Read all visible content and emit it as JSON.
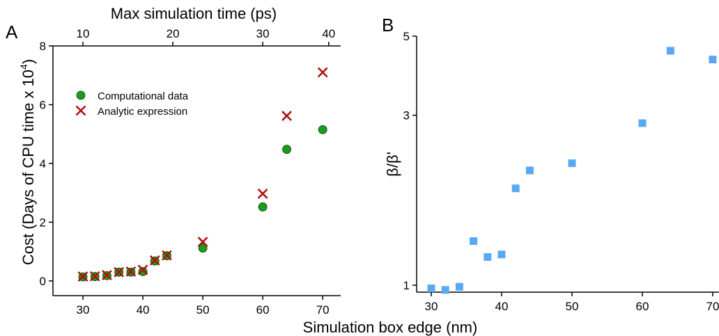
{
  "shared_xlabel": "Simulation box edge (nm)",
  "chart_data": [
    {
      "panel_label": "A",
      "type": "scatter",
      "xlabel": "Simulation box edge (nm)",
      "ylabel": "Cost (Days of CPU time x 10",
      "ylabel_sup": "4",
      "ylabel_close": ")",
      "top_xlabel": "Max simulation time (ps)",
      "xlim": [
        25,
        73
      ],
      "ylim": [
        -0.5,
        8
      ],
      "xticks": [
        30,
        40,
        50,
        60,
        70
      ],
      "yticks": [
        0,
        2,
        4,
        6,
        8
      ],
      "top_ticks": [
        {
          "label": "10",
          "x": 30
        },
        {
          "label": "20",
          "x": 45
        },
        {
          "label": "30",
          "x": 60
        },
        {
          "label": "40",
          "x": 71
        }
      ],
      "legend_position": "upper-left",
      "series": [
        {
          "name": "Computational data",
          "marker": "circle",
          "color": "#1a9e1a",
          "x": [
            30,
            32,
            34,
            36,
            38,
            40,
            42,
            44,
            50,
            60,
            64,
            70
          ],
          "y": [
            0.14,
            0.15,
            0.18,
            0.3,
            0.3,
            0.32,
            0.68,
            0.86,
            1.12,
            2.52,
            4.48,
            5.15
          ]
        },
        {
          "name": "Analytic expression",
          "marker": "x",
          "color": "#b01010",
          "x": [
            30,
            32,
            34,
            36,
            38,
            40,
            42,
            44,
            50,
            60,
            64,
            70
          ],
          "y": [
            0.15,
            0.16,
            0.2,
            0.3,
            0.32,
            0.38,
            0.7,
            0.87,
            1.33,
            2.97,
            5.62,
            7.1
          ]
        }
      ]
    },
    {
      "panel_label": "B",
      "type": "scatter",
      "xlabel": "Simulation box edge (nm)",
      "ylabel": "β/β'",
      "xlim": [
        28,
        71
      ],
      "ylim": [
        1,
        5
      ],
      "yscale": "log",
      "xticks": [
        30,
        40,
        50,
        60,
        70
      ],
      "yticks": [
        1,
        3,
        5
      ],
      "series": [
        {
          "marker": "square",
          "color": "#5aa9f0",
          "x": [
            30,
            32,
            34,
            36,
            38,
            40,
            42,
            44,
            50,
            60,
            64,
            70
          ],
          "y": [
            0.98,
            0.97,
            0.99,
            1.33,
            1.2,
            1.22,
            1.87,
            2.1,
            2.2,
            2.85,
            4.55,
            4.3
          ]
        }
      ]
    }
  ]
}
